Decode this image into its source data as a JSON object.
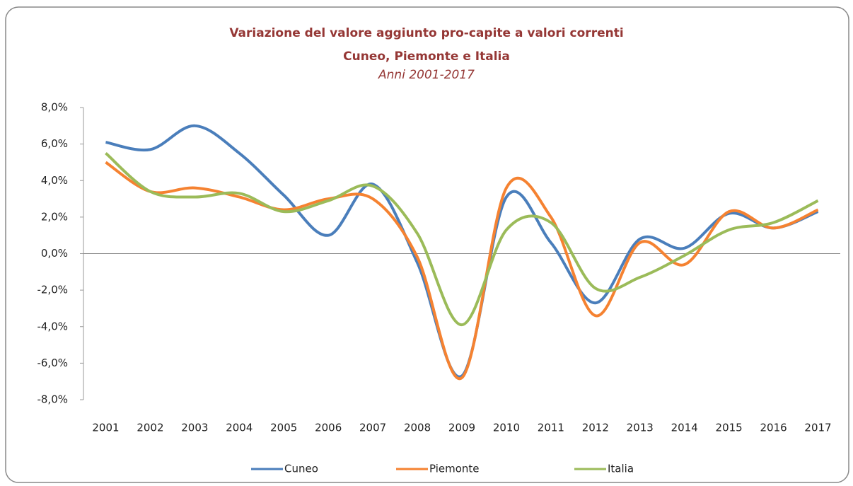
{
  "chart_data": {
    "type": "line",
    "title": "Variazione del valore aggiunto pro-capite a valori correnti",
    "subtitle": "Cuneo, Piemonte e Italia",
    "period": "Anni 2001-2017",
    "categories": [
      "2001",
      "2002",
      "2003",
      "2004",
      "2005",
      "2006",
      "2007",
      "2008",
      "2009",
      "2010",
      "2011",
      "2012",
      "2013",
      "2014",
      "2015",
      "2016",
      "2017"
    ],
    "series": [
      {
        "name": "Cuneo",
        "color": "#4a7ebb",
        "values": [
          6.1,
          5.7,
          7.0,
          5.5,
          3.2,
          1.0,
          3.8,
          -0.5,
          -6.7,
          3.1,
          0.6,
          -2.7,
          0.8,
          0.3,
          2.2,
          1.4,
          2.3
        ]
      },
      {
        "name": "Piemonte",
        "color": "#f58231",
        "values": [
          5.0,
          3.4,
          3.6,
          3.1,
          2.4,
          3.0,
          3.0,
          -0.2,
          -6.8,
          3.6,
          2.0,
          -3.4,
          0.6,
          -0.6,
          2.3,
          1.4,
          2.4
        ]
      },
      {
        "name": "Italia",
        "color": "#9bbb59",
        "values": [
          5.5,
          3.4,
          3.1,
          3.3,
          2.3,
          2.9,
          3.7,
          1.1,
          -3.9,
          1.3,
          1.7,
          -1.9,
          -1.3,
          -0.1,
          1.3,
          1.7,
          2.9
        ]
      }
    ],
    "ylim": [
      -8,
      8
    ],
    "yticks": [
      {
        "value": -8,
        "label": "-8,0%"
      },
      {
        "value": -6,
        "label": "-6,0%"
      },
      {
        "value": -4,
        "label": "-4,0%"
      },
      {
        "value": -2,
        "label": "-2,0%"
      },
      {
        "value": 0,
        "label": "0,0%"
      },
      {
        "value": 2,
        "label": "2,0%"
      },
      {
        "value": 4,
        "label": "4,0%"
      },
      {
        "value": 6,
        "label": "6,0%"
      },
      {
        "value": 8,
        "label": "8,0%"
      }
    ],
    "smooth": true,
    "legend": "bottom"
  }
}
